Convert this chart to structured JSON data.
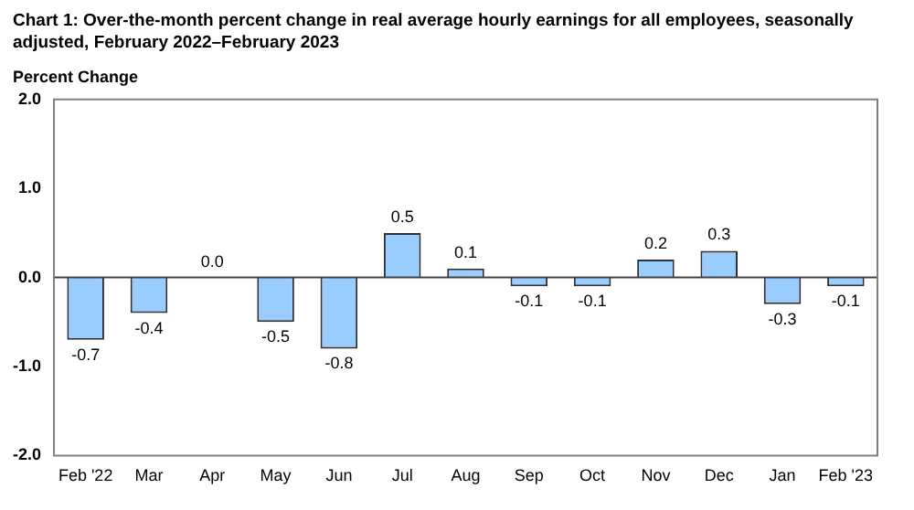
{
  "chart_data": {
    "type": "bar",
    "title": "Chart 1: Over-the-month percent change in real average hourly earnings for all employees, seasonally adjusted, February 2022–February 2023",
    "ylabel": "Percent Change",
    "categories": [
      "Feb '22",
      "Mar",
      "Apr",
      "May",
      "Jun",
      "Jul",
      "Aug",
      "Sep",
      "Oct",
      "Nov",
      "Dec",
      "Jan",
      "Feb '23"
    ],
    "values": [
      -0.7,
      -0.4,
      0.0,
      -0.5,
      -0.8,
      0.5,
      0.1,
      -0.1,
      -0.1,
      0.2,
      0.3,
      -0.3,
      -0.1
    ],
    "value_labels": [
      "-0.7",
      "-0.4",
      "0.0",
      "-0.5",
      "-0.8",
      "0.5",
      "0.1",
      "-0.1",
      "-0.1",
      "0.2",
      "0.3",
      "-0.3",
      "-0.1"
    ],
    "color": "#99ccff",
    "ylim": [
      -2,
      2
    ],
    "yticks": [
      {
        "value": 2,
        "label": "2.0"
      },
      {
        "value": 1,
        "label": "1.0"
      },
      {
        "value": 0,
        "label": "0.0"
      },
      {
        "value": -1,
        "label": "-1.0"
      },
      {
        "value": -2,
        "label": "-2.0"
      }
    ],
    "ref_lines": [
      {
        "axis": "y",
        "value": 0,
        "color": "#404040"
      }
    ],
    "grid": false,
    "legend": false
  }
}
